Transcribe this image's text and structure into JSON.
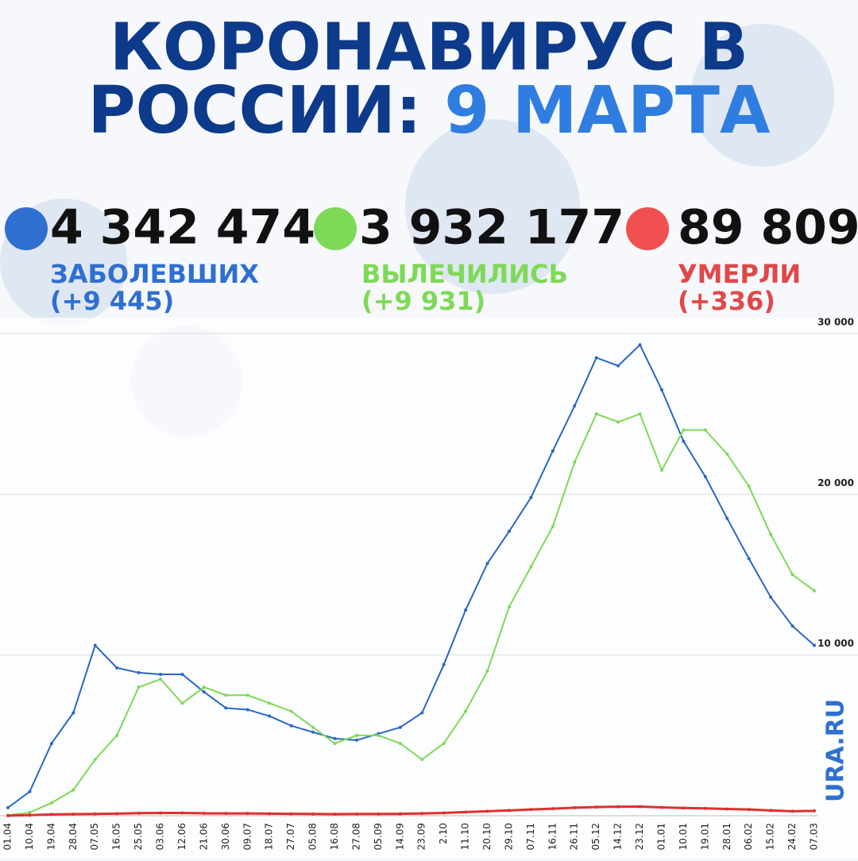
{
  "header": {
    "title_line1": "КОРОНАВИРУС В",
    "title_line2": "РОССИИ:",
    "title_date": "9 МАРТА"
  },
  "stats": [
    {
      "number": "4 342 474",
      "label": "ЗАБОЛЕВШИХ",
      "delta": "(+9 445)"
    },
    {
      "number": "3 932 177",
      "label": "ВЫЛЕЧИЛИСЬ",
      "delta": "(+9 931)"
    },
    {
      "number": "89 809",
      "label": "УМЕРЛИ",
      "delta": "(+336)"
    }
  ],
  "logo": "URA.RU",
  "chart_data": {
    "type": "line",
    "categories": [
      "01.04",
      "10.04",
      "19.04",
      "28.04",
      "07.05",
      "16.05",
      "25.05",
      "03.06",
      "12.06",
      "21.06",
      "30.06",
      "09.07",
      "18.07",
      "27.07",
      "05.08",
      "16.08",
      "27.08",
      "05.09",
      "14.09",
      "23.09",
      "2.10",
      "11.10",
      "20.10",
      "29.10",
      "07.11",
      "16.11",
      "26.11",
      "05.12",
      "14.12",
      "23.12",
      "01.01",
      "10.01",
      "19.01",
      "28.01",
      "06.02",
      "15.02",
      "24.02",
      "07.03"
    ],
    "series": [
      {
        "name": "ЗАБОЛЕВШИХ",
        "color": "#2a66c4",
        "values": [
          500,
          1500,
          4500,
          6400,
          10600,
          9200,
          8900,
          8800,
          8800,
          7700,
          6700,
          6600,
          6200,
          5600,
          5200,
          4800,
          4700,
          5100,
          5500,
          6400,
          9400,
          12800,
          15700,
          17700,
          19800,
          22700,
          25500,
          28500,
          28000,
          29300,
          26500,
          23300,
          21100,
          18500,
          16000,
          13600,
          11800,
          10600
        ]
      },
      {
        "name": "ВЫЛЕЧИЛИСЬ",
        "color": "#7ed957",
        "values": [
          30,
          200,
          800,
          1600,
          3500,
          5000,
          8000,
          8500,
          7000,
          8000,
          7500,
          7500,
          7000,
          6500,
          5500,
          4500,
          5000,
          5000,
          4500,
          3500,
          4500,
          6500,
          9000,
          13000,
          15500,
          18000,
          22000,
          25000,
          24500,
          25000,
          21500,
          24000,
          24000,
          22500,
          20500,
          17500,
          15000,
          14000
        ]
      },
      {
        "name": "УМЕРЛИ",
        "color": "#e03030",
        "values": [
          5,
          40,
          80,
          100,
          110,
          130,
          160,
          170,
          170,
          150,
          140,
          140,
          130,
          120,
          110,
          100,
          110,
          110,
          120,
          140,
          170,
          230,
          280,
          330,
          390,
          440,
          500,
          540,
          560,
          570,
          520,
          480,
          460,
          420,
          390,
          330,
          280,
          300
        ]
      }
    ],
    "ylim": [
      0,
      30000
    ],
    "yticks": [
      {
        "value": 10000,
        "label": "10 000"
      },
      {
        "value": 20000,
        "label": "20 000"
      },
      {
        "value": 30000,
        "label": "30 000"
      }
    ],
    "grid": true
  }
}
